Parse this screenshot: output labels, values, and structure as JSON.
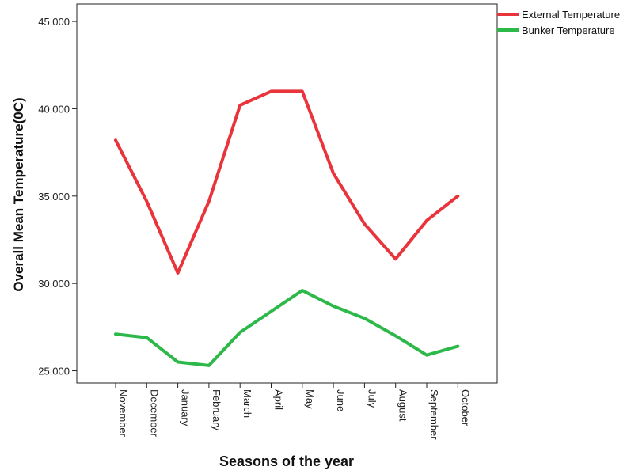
{
  "chart_data": {
    "type": "line",
    "title": "",
    "xlabel": "Seasons of the year",
    "ylabel": "Overall Mean Temperature(0C)",
    "categories": [
      "November",
      "December",
      "January",
      "February",
      "March",
      "April",
      "May",
      "June",
      "July",
      "August",
      "September",
      "October"
    ],
    "ylim": [
      24.3,
      46.0
    ],
    "yticks": [
      25.0,
      30.0,
      35.0,
      40.0,
      45.0
    ],
    "ytick_labels": [
      "25.000",
      "30.000",
      "35.000",
      "40.000",
      "45.000"
    ],
    "grid": false,
    "legend_position": "top-right",
    "series": [
      {
        "name": "External Temperature",
        "color": "#e8343a",
        "values": [
          38.2,
          34.7,
          30.6,
          34.7,
          40.2,
          41.0,
          41.0,
          36.3,
          33.4,
          31.4,
          33.6,
          35.0
        ]
      },
      {
        "name": "Bunker Temperature",
        "color": "#2db84a",
        "values": [
          27.1,
          26.9,
          25.5,
          25.3,
          27.2,
          28.4,
          29.6,
          28.7,
          28.0,
          27.0,
          25.9,
          26.4
        ]
      }
    ]
  }
}
